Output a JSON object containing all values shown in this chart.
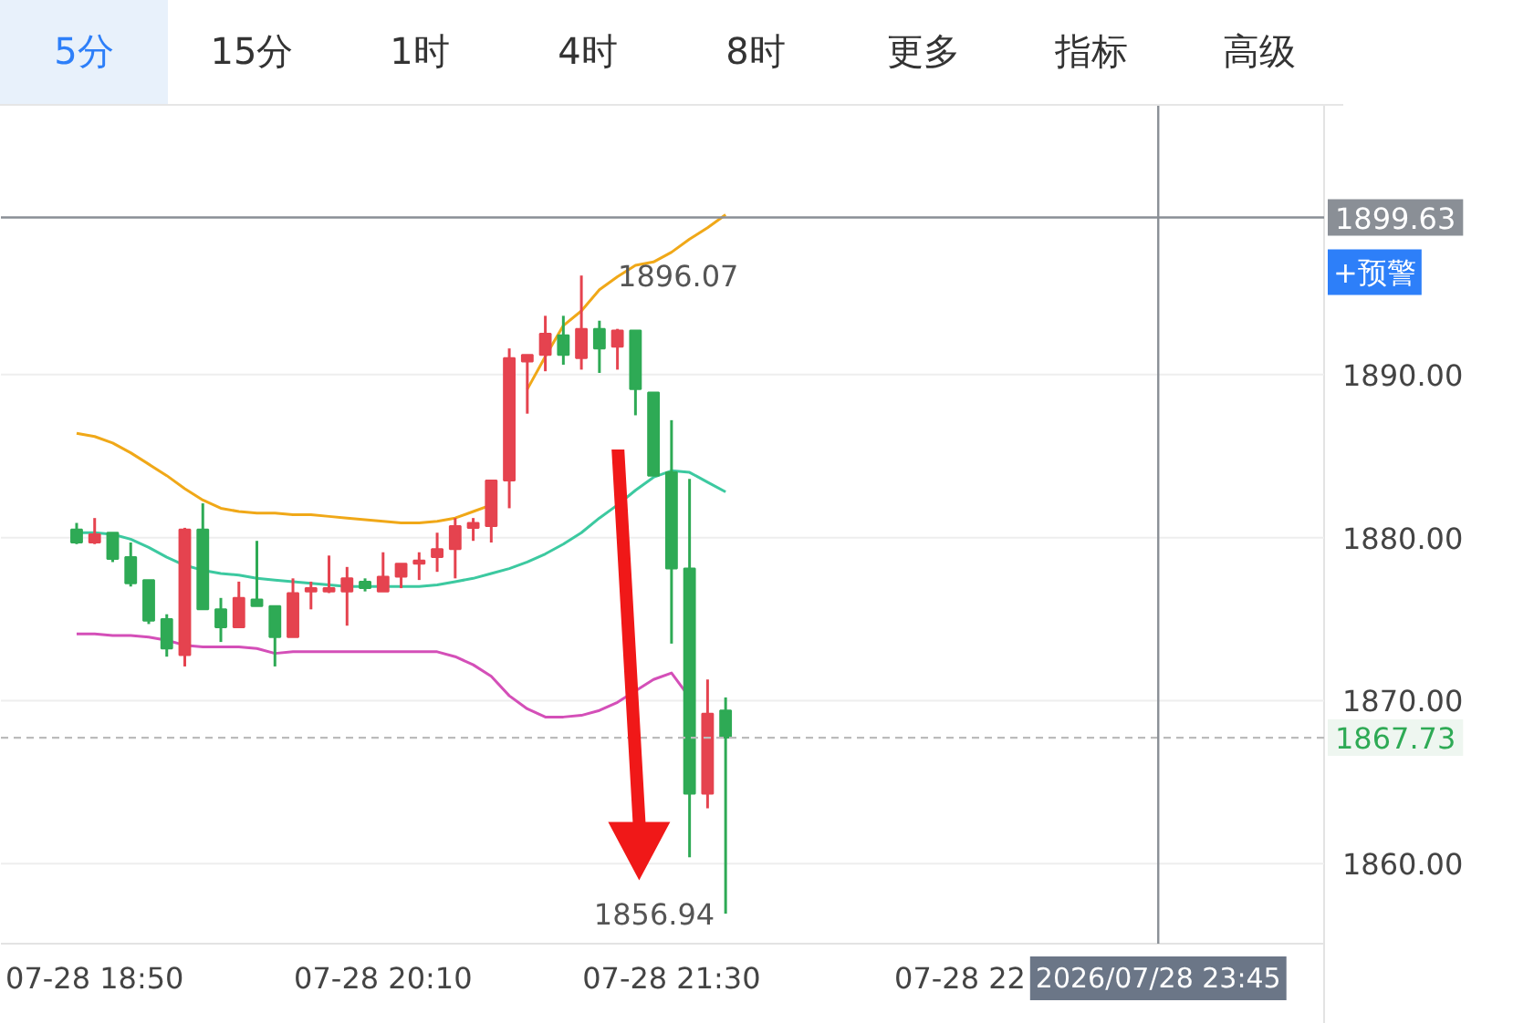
{
  "chart_data": {
    "type": "candlestick",
    "x": [
      "2026-07-28T18:45",
      "2026-07-28T18:50",
      "2026-07-28T18:55",
      "2026-07-28T19:00",
      "2026-07-28T19:05",
      "2026-07-28T19:10",
      "2026-07-28T19:15",
      "2026-07-28T19:20",
      "2026-07-28T19:25",
      "2026-07-28T19:30",
      "2026-07-28T19:35",
      "2026-07-28T19:40",
      "2026-07-28T19:45",
      "2026-07-28T19:50",
      "2026-07-28T19:55",
      "2026-07-28T20:00",
      "2026-07-28T20:05",
      "2026-07-28T20:10",
      "2026-07-28T20:15",
      "2026-07-28T20:20",
      "2026-07-28T20:25",
      "2026-07-28T20:30",
      "2026-07-28T20:35",
      "2026-07-28T20:40",
      "2026-07-28T20:45",
      "2026-07-28T20:50",
      "2026-07-28T20:55",
      "2026-07-28T21:00",
      "2026-07-28T21:05",
      "2026-07-28T21:10",
      "2026-07-28T21:15",
      "2026-07-28T21:20",
      "2026-07-28T21:25",
      "2026-07-28T21:30",
      "2026-07-28T21:35",
      "2026-07-28T21:40",
      "2026-07-28T21:45"
    ],
    "ohlc": [
      [
        1880.5,
        1880.9,
        1879.6,
        1879.7
      ],
      [
        1879.7,
        1881.2,
        1879.6,
        1880.2
      ],
      [
        1880.3,
        1880.3,
        1878.5,
        1878.7
      ],
      [
        1878.8,
        1879.7,
        1877.0,
        1877.2
      ],
      [
        1877.4,
        1877.4,
        1874.7,
        1874.9
      ],
      [
        1875.0,
        1875.3,
        1872.7,
        1873.2
      ],
      [
        1872.8,
        1880.6,
        1872.1,
        1880.5
      ],
      [
        1880.5,
        1882.1,
        1875.6,
        1875.6
      ],
      [
        1875.6,
        1876.3,
        1873.6,
        1874.5
      ],
      [
        1874.5,
        1877.3,
        1874.5,
        1876.3
      ],
      [
        1876.2,
        1879.8,
        1875.8,
        1875.8
      ],
      [
        1875.8,
        1875.8,
        1872.1,
        1873.9
      ],
      [
        1873.9,
        1877.5,
        1873.9,
        1876.6
      ],
      [
        1876.7,
        1877.3,
        1875.6,
        1876.9
      ],
      [
        1876.7,
        1878.9,
        1876.6,
        1876.9
      ],
      [
        1876.7,
        1878.2,
        1874.6,
        1877.5
      ],
      [
        1877.3,
        1877.5,
        1876.7,
        1876.9
      ],
      [
        1876.7,
        1879.1,
        1876.7,
        1877.6
      ],
      [
        1877.6,
        1878.4,
        1876.9,
        1878.4
      ],
      [
        1878.4,
        1879.1,
        1877.4,
        1878.6
      ],
      [
        1878.8,
        1880.3,
        1877.9,
        1879.3
      ],
      [
        1879.3,
        1881.2,
        1877.5,
        1880.7
      ],
      [
        1880.6,
        1881.2,
        1879.8,
        1880.9
      ],
      [
        1880.7,
        1883.5,
        1879.7,
        1883.5
      ],
      [
        1883.5,
        1891.6,
        1881.8,
        1891.0
      ],
      [
        1890.8,
        1891.2,
        1887.6,
        1891.2
      ],
      [
        1891.2,
        1893.6,
        1890.2,
        1892.5
      ],
      [
        1892.4,
        1893.6,
        1890.6,
        1891.2
      ],
      [
        1891.0,
        1896.07,
        1890.3,
        1892.8
      ],
      [
        1892.8,
        1893.3,
        1890.1,
        1891.6
      ],
      [
        1891.7,
        1892.8,
        1890.3,
        1892.7
      ],
      [
        1892.7,
        1892.7,
        1887.5,
        1889.1
      ],
      [
        1888.9,
        1888.9,
        1883.8,
        1883.8
      ],
      [
        1884.0,
        1887.2,
        1873.5,
        1878.1
      ],
      [
        1878.1,
        1883.6,
        1860.4,
        1864.3
      ],
      [
        1864.3,
        1871.3,
        1863.4,
        1869.2
      ],
      [
        1869.4,
        1870.2,
        1856.94,
        1867.73
      ]
    ],
    "colors": [
      "#2eaa55",
      "#e5434f",
      "#2eaa55",
      "#2eaa55",
      "#2eaa55",
      "#2eaa55",
      "#e5434f",
      "#2eaa55",
      "#2eaa55",
      "#e5434f",
      "#2eaa55",
      "#2eaa55",
      "#e5434f",
      "#e5434f",
      "#e5434f",
      "#e5434f",
      "#2eaa55",
      "#e5434f",
      "#e5434f",
      "#e5434f",
      "#e5434f",
      "#e5434f",
      "#e5434f",
      "#e5434f",
      "#e5434f",
      "#e5434f",
      "#e5434f",
      "#2eaa55",
      "#e5434f",
      "#2eaa55",
      "#e5434f",
      "#2eaa55",
      "#2eaa55",
      "#2eaa55",
      "#2eaa55",
      "#e5434f",
      "#2eaa55"
    ],
    "series": [
      {
        "type": "line",
        "color": "#f0a818",
        "values": [
          1886.4,
          1886.2,
          1885.8,
          1885.2,
          1884.5,
          1883.8,
          1883.0,
          1882.3,
          1881.8,
          1881.6,
          1881.5,
          1881.5,
          1881.4,
          1881.4,
          1881.3,
          1881.2,
          1881.1,
          1881.0,
          1880.9,
          1880.9,
          1881.0,
          1881.2,
          1881.6,
          1882.0,
          null,
          1889.1,
          1891.1,
          1893.0,
          1893.9,
          1895.2,
          1896.0,
          1896.7,
          1896.9,
          1897.5,
          1898.3,
          1899.0,
          1899.8
        ]
      },
      {
        "type": "line",
        "color": "#3cc9a0",
        "values": [
          1880.3,
          1880.3,
          1880.2,
          1879.9,
          1879.4,
          1878.8,
          1878.3,
          1878.0,
          1877.8,
          1877.7,
          1877.5,
          1877.4,
          1877.3,
          1877.2,
          1877.1,
          1877.0,
          1877.0,
          1877.0,
          1877.0,
          1877.0,
          1877.1,
          1877.3,
          1877.5,
          1877.8,
          1878.1,
          1878.5,
          1879.0,
          1879.6,
          1880.3,
          1881.2,
          1882.0,
          1882.9,
          1883.7,
          1884.1,
          1884.0,
          1883.4,
          1882.8
        ]
      },
      {
        "type": "line",
        "color": "#d44fb8",
        "values": [
          1874.1,
          1874.1,
          1874.0,
          1874.0,
          1873.9,
          1873.7,
          1873.4,
          1873.3,
          1873.3,
          1873.3,
          1873.2,
          1872.9,
          1873.0,
          1873.0,
          1873.0,
          1873.0,
          1873.0,
          1873.0,
          1873.0,
          1873.0,
          1873.0,
          1872.7,
          1872.2,
          1871.5,
          1870.3,
          1869.5,
          1869.0,
          1869.0,
          1869.1,
          1869.4,
          1869.9,
          1870.6,
          1871.3,
          1871.7,
          1870.2,
          null,
          null
        ]
      }
    ],
    "xlim": [
      "2026-07-28T18:24",
      "2026-07-29T00:31"
    ],
    "xticks": [
      {
        "value": "2026-07-28T18:50",
        "label": "07-28 18:50"
      },
      {
        "value": "2026-07-28T20:10",
        "label": "07-28 20:10"
      },
      {
        "value": "2026-07-28T21:30",
        "label": "07-28 21:30"
      },
      {
        "value": "2026-07-28T22:50",
        "label": "07-28 22"
      }
    ],
    "ylim": [
      1855.1,
      1906.2
    ],
    "yticks": [
      {
        "value": 1860,
        "label": "1860.00"
      },
      {
        "value": 1870,
        "label": "1870.00"
      },
      {
        "value": 1880,
        "label": "1880.00"
      },
      {
        "value": 1890,
        "label": "1890.00"
      }
    ],
    "grid": "y",
    "ref_lines": [
      {
        "axis": "y",
        "value": 1899.63,
        "label": "1899.63",
        "color": "#8a8f96",
        "line_style": "solid"
      },
      {
        "axis": "y",
        "value": 1867.73,
        "label": "1867.73",
        "color": "#bbbbbb",
        "line_style": "dashed"
      },
      {
        "axis": "x",
        "value": "2026-07-28T23:45",
        "label": "2026/07/28 23:45",
        "color": "#8a8f96",
        "line_style": "solid"
      }
    ],
    "annotations": [
      "5分",
      "15分",
      "1时",
      "4时",
      "8时",
      "更多",
      "指标",
      "高级",
      "+预警",
      {
        "text": "1896.07",
        "x": "2026-07-28T21:05",
        "y": 1896.07
      },
      {
        "text": "1856.94",
        "x": "2026-07-28T21:45",
        "y": 1856.94
      }
    ]
  }
}
